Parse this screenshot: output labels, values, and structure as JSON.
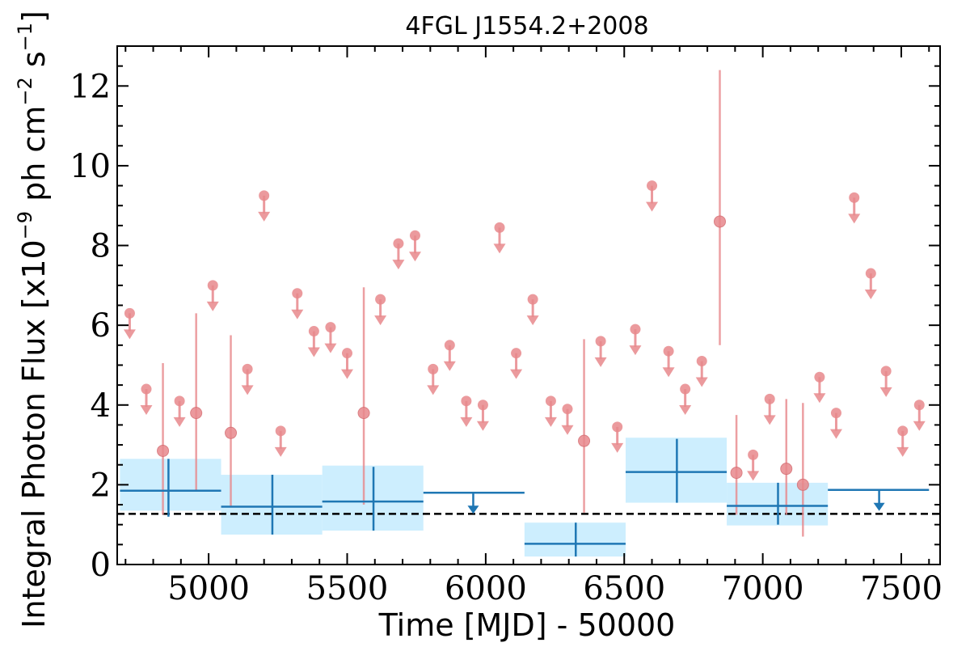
{
  "chart_data": {
    "type": "scatter",
    "title": "4FGL J1554.2+2008",
    "xlabel": "Time [MJD] - 50000",
    "ylabel": "Integral Photon Flux [x10^{-9} ph cm^{-2} s^{-1}]",
    "ylabel_main": "Integral Photon Flux [x10",
    "ylabel_exp1": "−9",
    "ylabel_mid": " ph cm",
    "ylabel_exp2": "−2",
    "ylabel_mid2": " s",
    "ylabel_exp3": "−1",
    "ylabel_end": "]",
    "xlim": [
      4670,
      7640
    ],
    "ylim": [
      0,
      13
    ],
    "xticks": [
      5000,
      5500,
      6000,
      6500,
      7000,
      7500
    ],
    "yticks": [
      0,
      2,
      4,
      6,
      8,
      10,
      12
    ],
    "xtick_labels": [
      "5000",
      "5500",
      "6000",
      "6500",
      "7000",
      "7500"
    ],
    "ytick_labels": [
      "0",
      "2",
      "4",
      "6",
      "8",
      "10",
      "12"
    ],
    "reference_line": {
      "y": 1.27,
      "style": "dashed",
      "color": "#000000"
    },
    "colors": {
      "short_bins": "#e8888c",
      "long_bins": "#1f77b4",
      "long_band": "#cdeefe"
    },
    "series": [
      {
        "points": [
          {
            "x": 4715,
            "y": 6.3,
            "ul": true
          },
          {
            "x": 4775,
            "y": 4.4,
            "ul": true
          },
          {
            "x": 4835,
            "y": 2.85,
            "lo": 1.25,
            "hi": 5.05
          },
          {
            "x": 4895,
            "y": 4.1,
            "ul": true
          },
          {
            "x": 4955,
            "y": 3.8,
            "lo": 1.85,
            "hi": 6.3
          },
          {
            "x": 5015,
            "y": 7.0,
            "ul": true
          },
          {
            "x": 5080,
            "y": 3.3,
            "lo": 1.45,
            "hi": 5.75
          },
          {
            "x": 5140,
            "y": 4.9,
            "ul": true
          },
          {
            "x": 5200,
            "y": 9.25,
            "ul": true
          },
          {
            "x": 5260,
            "y": 3.35,
            "ul": true
          },
          {
            "x": 5320,
            "y": 6.8,
            "ul": true
          },
          {
            "x": 5380,
            "y": 5.85,
            "ul": true
          },
          {
            "x": 5440,
            "y": 5.95,
            "ul": true
          },
          {
            "x": 5500,
            "y": 5.3,
            "ul": true
          },
          {
            "x": 5560,
            "y": 3.8,
            "lo": 1.5,
            "hi": 6.95
          },
          {
            "x": 5620,
            "y": 6.65,
            "ul": true
          },
          {
            "x": 5685,
            "y": 8.05,
            "ul": true
          },
          {
            "x": 5745,
            "y": 8.25,
            "ul": true
          },
          {
            "x": 5810,
            "y": 4.9,
            "ul": true
          },
          {
            "x": 5870,
            "y": 5.5,
            "ul": true
          },
          {
            "x": 5930,
            "y": 4.1,
            "ul": true
          },
          {
            "x": 5990,
            "y": 4.0,
            "ul": true
          },
          {
            "x": 6050,
            "y": 8.45,
            "ul": true
          },
          {
            "x": 6110,
            "y": 5.3,
            "ul": true
          },
          {
            "x": 6170,
            "y": 6.65,
            "ul": true
          },
          {
            "x": 6235,
            "y": 4.1,
            "ul": true
          },
          {
            "x": 6295,
            "y": 3.9,
            "ul": true
          },
          {
            "x": 6355,
            "y": 3.1,
            "lo": 1.3,
            "hi": 5.65
          },
          {
            "x": 6415,
            "y": 5.6,
            "ul": true
          },
          {
            "x": 6475,
            "y": 3.45,
            "ul": true
          },
          {
            "x": 6540,
            "y": 5.9,
            "ul": true
          },
          {
            "x": 6600,
            "y": 9.5,
            "ul": true
          },
          {
            "x": 6660,
            "y": 5.35,
            "ul": true
          },
          {
            "x": 6720,
            "y": 4.4,
            "ul": true
          },
          {
            "x": 6780,
            "y": 5.1,
            "ul": true
          },
          {
            "x": 6845,
            "y": 8.6,
            "lo": 5.5,
            "hi": 12.4
          },
          {
            "x": 6905,
            "y": 2.3,
            "lo": 1.25,
            "hi": 3.75
          },
          {
            "x": 6965,
            "y": 2.75,
            "ul": true
          },
          {
            "x": 7025,
            "y": 4.15,
            "ul": true
          },
          {
            "x": 7085,
            "y": 2.4,
            "lo": 1.25,
            "hi": 4.15
          },
          {
            "x": 7145,
            "y": 2.0,
            "lo": 0.7,
            "hi": 4.05
          },
          {
            "x": 7205,
            "y": 4.7,
            "ul": true
          },
          {
            "x": 7265,
            "y": 3.8,
            "ul": true
          },
          {
            "x": 7330,
            "y": 9.2,
            "ul": true
          },
          {
            "x": 7390,
            "y": 7.3,
            "ul": true
          },
          {
            "x": 7445,
            "y": 4.85,
            "ul": true
          },
          {
            "x": 7505,
            "y": 3.35,
            "ul": true
          },
          {
            "x": 7565,
            "y": 4.0,
            "ul": true
          }
        ]
      },
      {
        "bins": [
          {
            "x0": 4680,
            "x1": 5045,
            "xc": 4855,
            "y": 1.85,
            "lo": 1.2,
            "hi": 2.65,
            "band_lo": 1.35,
            "band_hi": 2.65
          },
          {
            "x0": 5045,
            "x1": 5410,
            "xc": 5230,
            "y": 1.45,
            "lo": 0.75,
            "hi": 2.25,
            "band_lo": 0.75,
            "band_hi": 2.25
          },
          {
            "x0": 5410,
            "x1": 5775,
            "xc": 5595,
            "y": 1.58,
            "lo": 0.85,
            "hi": 2.45,
            "band_lo": 0.85,
            "band_hi": 2.48
          },
          {
            "x0": 5775,
            "x1": 6140,
            "xc": 5955,
            "y": 1.8,
            "ul": true
          },
          {
            "x0": 6140,
            "x1": 6505,
            "xc": 6325,
            "y": 0.52,
            "lo": 0.2,
            "hi": 1.05,
            "band_lo": 0.2,
            "band_hi": 1.05
          },
          {
            "x0": 6505,
            "x1": 6870,
            "xc": 6690,
            "y": 2.32,
            "lo": 1.55,
            "hi": 3.15,
            "band_lo": 1.55,
            "band_hi": 3.18
          },
          {
            "x0": 6870,
            "x1": 7235,
            "xc": 7055,
            "y": 1.47,
            "lo": 1.0,
            "hi": 2.05,
            "band_lo": 0.98,
            "band_hi": 2.05
          },
          {
            "x0": 7235,
            "x1": 7600,
            "xc": 7420,
            "y": 1.87,
            "ul": true
          }
        ]
      }
    ]
  }
}
